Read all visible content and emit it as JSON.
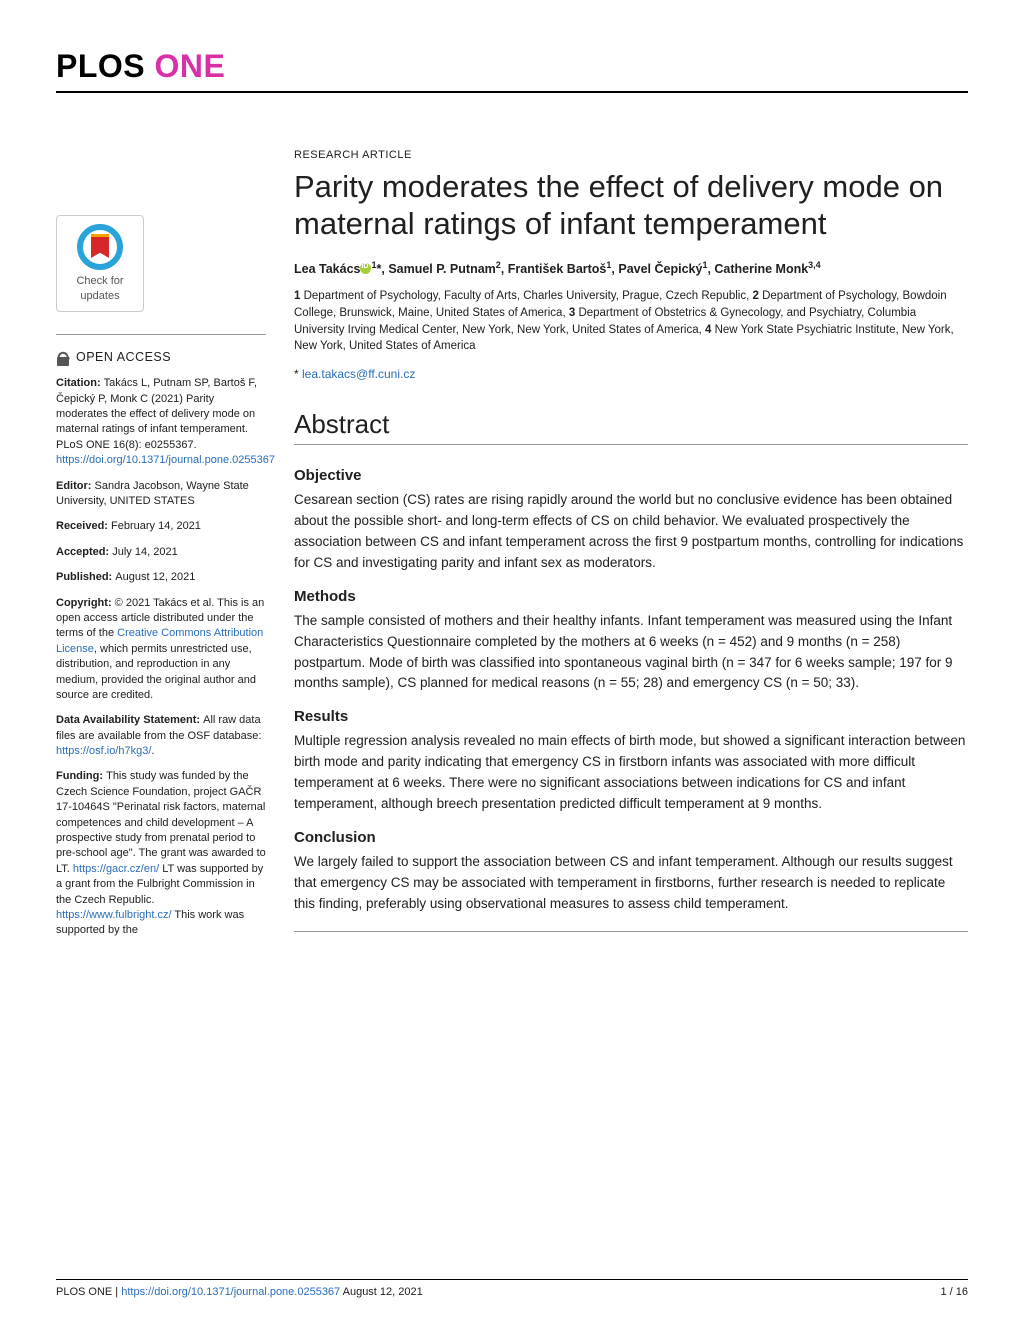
{
  "journal": {
    "plos": "PLOS",
    "one": " ONE"
  },
  "article_type": "RESEARCH ARTICLE",
  "title": "Parity moderates the effect of delivery mode on maternal ratings of infant temperament",
  "authors_html": "Lea Takács",
  "author1_sup": "1",
  "author1_corr": "*",
  "authors_rest": ", Samuel P. Putnam",
  "author2_sup": "2",
  "authors_rest2": ", František Bartoš",
  "author3_sup": "1",
  "authors_rest3": ", Pavel Čepický",
  "author4_sup": "1",
  "authors_rest4": ", Catherine Monk",
  "author5_sup": "3,4",
  "affil": {
    "n1": "1 ",
    "t1": " Department of Psychology, Faculty of Arts, Charles University, Prague, Czech Republic, ",
    "n2": "2 ",
    "t2": " Department of Psychology, Bowdoin College, Brunswick, Maine, United States of America, ",
    "n3": "3 ",
    "t3": " Department of Obstetrics & Gynecology, and Psychiatry, Columbia University Irving Medical Center, New York, New York, United States of America, ",
    "n4": "4 ",
    "t4": " New York State Psychiatric Institute, New York, New York, United States of America"
  },
  "corr_star": "* ",
  "corr_email": "lea.takacs@ff.cuni.cz",
  "abstract_heading": "Abstract",
  "sections": {
    "objective_h": "Objective",
    "objective": "Cesarean section (CS) rates are rising rapidly around the world but no conclusive evidence has been obtained about the possible short- and long-term effects of CS on child behavior. We evaluated prospectively the association between CS and infant temperament across the first 9 postpartum months, controlling for indications for CS and investigating parity and infant sex as moderators.",
    "methods_h": "Methods",
    "methods": "The sample consisted of mothers and their healthy infants. Infant temperament was measured using the Infant Characteristics Questionnaire completed by the mothers at 6 weeks (n = 452) and 9 months (n = 258) postpartum. Mode of birth was classified into spontaneous vaginal birth (n = 347 for 6 weeks sample; 197 for 9 months sample), CS planned for medical reasons (n = 55; 28) and emergency CS (n = 50; 33).",
    "results_h": "Results",
    "results": "Multiple regression analysis revealed no main effects of birth mode, but showed a significant interaction between birth mode and parity indicating that emergency CS in firstborn infants was associated with more difficult temperament at 6 weeks. There were no significant associations between indications for CS and infant temperament, although breech presentation predicted difficult temperament at 9 months.",
    "conclusion_h": "Conclusion",
    "conclusion": "We largely failed to support the association between CS and infant temperament. Although our results suggest that emergency CS may be associated with temperament in firstborns, further research is needed to replicate this finding, preferably using observational measures to assess child temperament."
  },
  "crossmark": {
    "line1": "Check for",
    "line2": "updates"
  },
  "sidebar": {
    "open_access": "OPEN ACCESS",
    "citation_label": "Citation: ",
    "citation": "Takács L, Putnam SP, Bartoš F, Čepický P, Monk C (2021) Parity moderates the effect of delivery mode on maternal ratings of infant temperament. PLoS ONE 16(8): e0255367. ",
    "citation_link": "https://doi.org/10.1371/journal.pone.0255367",
    "editor_label": "Editor: ",
    "editor": "Sandra Jacobson, Wayne State University, UNITED STATES",
    "received_label": "Received: ",
    "received": "February 14, 2021",
    "accepted_label": "Accepted: ",
    "accepted": "July 14, 2021",
    "published_label": "Published: ",
    "published": "August 12, 2021",
    "copyright_label": "Copyright: ",
    "copyright_a": "© 2021 Takács et al. This is an open access article distributed under the terms of the ",
    "cc_link": "Creative Commons Attribution License",
    "copyright_b": ", which permits unrestricted use, distribution, and reproduction in any medium, provided the original author and source are credited.",
    "data_label": "Data Availability Statement: ",
    "data_a": "All raw data files are available from the OSF database: ",
    "data_link": "https://osf.io/h7kg3/",
    "data_b": ".",
    "funding_label": "Funding: ",
    "funding_a": "This study was funded by the Czech Science Foundation, project GAČR 17-10464S \"Perinatal risk factors, maternal competences and child development – A prospective study from prenatal period to pre-school age\". The grant was awarded to LT. ",
    "funding_link1": "https://gacr.cz/en/",
    "funding_b": " LT was supported by a grant from the Fulbright Commission in the Czech Republic. ",
    "funding_link2": "https://www.fulbright.cz/",
    "funding_c": " This work was supported by the"
  },
  "footer": {
    "journal": "PLOS ONE | ",
    "doi": "https://doi.org/10.1371/journal.pone.0255367",
    "date": "   August 12, 2021",
    "page": "1 / 16"
  }
}
